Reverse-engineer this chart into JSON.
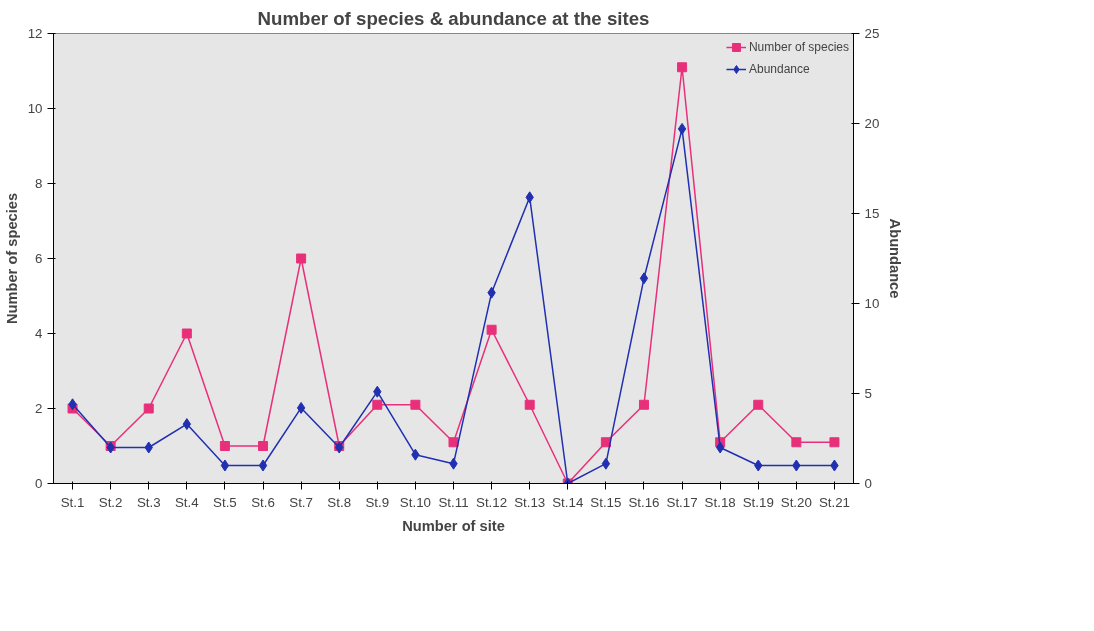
{
  "chart_data": {
    "type": "line",
    "title": "Number of species & abundance at the sites",
    "xlabel": "Number of site",
    "ylabel": "Number of species",
    "y2label": "Abundance",
    "categories": [
      "St.1",
      "St.2",
      "St.3",
      "St.4",
      "St.5",
      "St.6",
      "St.7",
      "St.8",
      "St.9",
      "St.10",
      "St.11",
      "St.12",
      "St.13",
      "St.14",
      "St.15",
      "St.16",
      "St.17",
      "St.18",
      "St.19",
      "St.20",
      "St.21"
    ],
    "series": [
      {
        "name": "Number of species",
        "color": "#e8307a",
        "marker": "square",
        "values": [
          2,
          1,
          2,
          4,
          1,
          1,
          6,
          1,
          2.1,
          2.1,
          1.1,
          4.1,
          2.1,
          0,
          1.1,
          2.1,
          11.1,
          1.1,
          2.1,
          1.1,
          1.1
        ]
      },
      {
        "name": "Abundance",
        "color": "#2030b0",
        "marker": "diamond",
        "axis": "y2",
        "values": [
          4.4,
          2,
          2,
          3.3,
          1,
          1,
          4.2,
          2,
          5.1,
          1.6,
          1.1,
          10.6,
          15.9,
          0,
          1.1,
          11.4,
          19.7,
          2,
          1,
          1,
          1
        ]
      }
    ],
    "ylim": [
      0,
      12
    ],
    "yticks": [
      0,
      2,
      4,
      6,
      8,
      10,
      12
    ],
    "y2lim": [
      0,
      25
    ],
    "y2ticks": [
      0,
      5,
      10,
      15,
      20,
      25
    ],
    "grid": false,
    "legend": "top right",
    "line_style": "solid"
  }
}
